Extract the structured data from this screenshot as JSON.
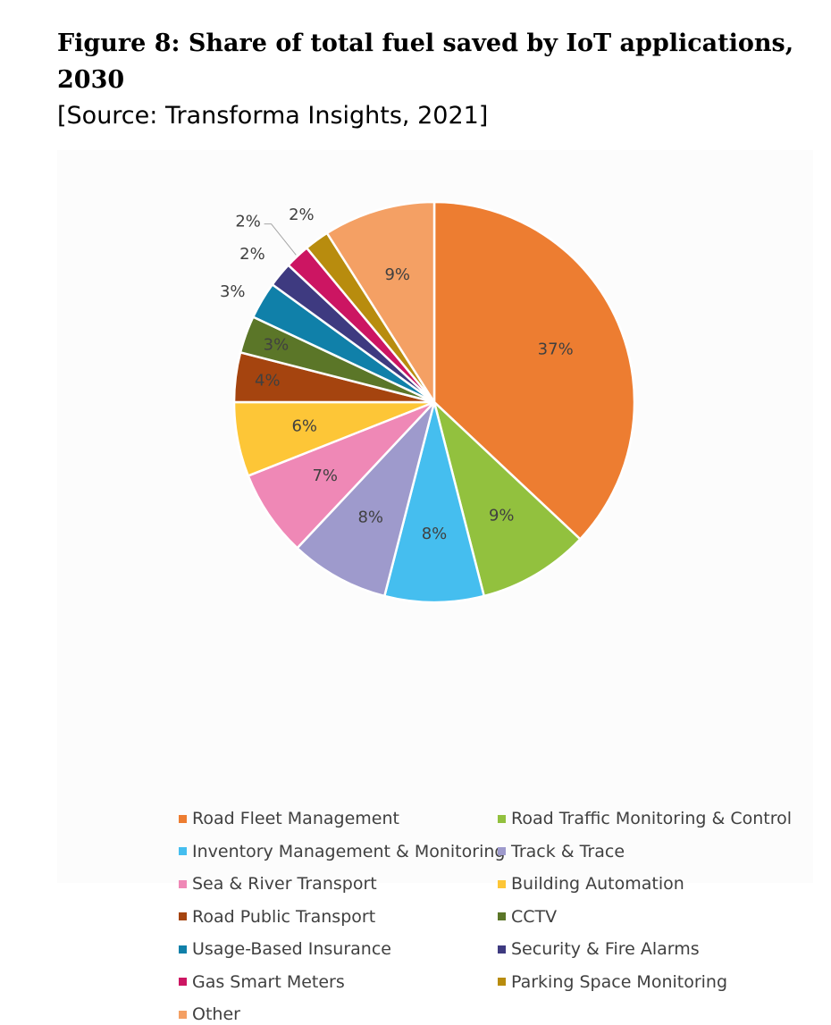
{
  "title": "Figure 8: Share of total fuel saved by IoT applications, 2030",
  "source": "[Source: Transforma Insights, 2021]",
  "chart_data": {
    "type": "pie",
    "title": "Figure 8: Share of total fuel saved by IoT applications, 2030",
    "legend_position": "bottom",
    "slices": [
      {
        "name": "Road Fleet Management",
        "value": 37,
        "label": "37%",
        "color": "#ED7D31"
      },
      {
        "name": "Road Traffic Monitoring & Control",
        "value": 9,
        "label": "9%",
        "color": "#92C13E"
      },
      {
        "name": "Inventory Management & Monitoring",
        "value": 8,
        "label": "8%",
        "color": "#45BEEF"
      },
      {
        "name": "Track & Trace",
        "value": 8,
        "label": "8%",
        "color": "#9E9ACC"
      },
      {
        "name": "Sea & River Transport",
        "value": 7,
        "label": "7%",
        "color": "#EF88B6"
      },
      {
        "name": "Building Automation",
        "value": 6,
        "label": "6%",
        "color": "#FDC637"
      },
      {
        "name": "Road Public Transport",
        "value": 4,
        "label": "4%",
        "color": "#A5440F"
      },
      {
        "name": "CCTV",
        "value": 3,
        "label": "3%",
        "color": "#5B7628"
      },
      {
        "name": "Usage-Based Insurance",
        "value": 3,
        "label": "3%",
        "color": "#1080A9"
      },
      {
        "name": "Security & Fire Alarms",
        "value": 2,
        "label": "2%",
        "color": "#3E3A80"
      },
      {
        "name": "Gas Smart Meters",
        "value": 2,
        "label": "2%",
        "color": "#CC1562"
      },
      {
        "name": "Parking Space Monitoring",
        "value": 2,
        "label": "2%",
        "color": "#B88C0E"
      },
      {
        "name": "Other",
        "value": 9,
        "label": "9%",
        "color": "#F4A064"
      }
    ]
  }
}
